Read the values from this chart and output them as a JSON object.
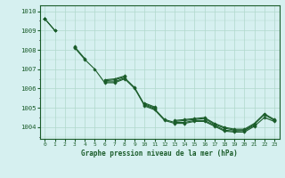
{
  "title": "Graphe pression niveau de la mer (hPa)",
  "bg_color": "#d6f0f0",
  "grid_color": "#b0d8cc",
  "line_color": "#1a5c2a",
  "marker_color": "#1a5c2a",
  "xlim": [
    -0.5,
    23.5
  ],
  "ylim": [
    1003.4,
    1010.3
  ],
  "yticks": [
    1004,
    1005,
    1006,
    1007,
    1008,
    1009,
    1010
  ],
  "xticks": [
    0,
    1,
    2,
    3,
    4,
    5,
    6,
    7,
    8,
    9,
    10,
    11,
    12,
    13,
    14,
    15,
    16,
    17,
    18,
    19,
    20,
    21,
    22,
    23
  ],
  "series": [
    [
      1009.6,
      1009.0,
      null,
      1008.1,
      1007.5,
      1007.0,
      1006.3,
      1006.3,
      1006.5,
      1006.0,
      1005.1,
      1004.9,
      1004.35,
      1004.2,
      1004.2,
      1004.3,
      1004.3,
      1004.05,
      1003.8,
      1003.75,
      1003.75,
      1004.05,
      1004.5,
      1004.3
    ],
    [
      1009.6,
      1009.0,
      null,
      1008.15,
      1007.55,
      null,
      1006.35,
      1006.35,
      1006.55,
      1006.05,
      1005.15,
      1004.95,
      1004.4,
      1004.25,
      1004.25,
      1004.35,
      1004.35,
      1004.1,
      1003.85,
      1003.8,
      1003.82,
      1004.1,
      null,
      1004.35
    ],
    [
      1009.6,
      null,
      null,
      1008.15,
      null,
      null,
      1006.4,
      1006.45,
      1006.6,
      null,
      1005.2,
      1005.0,
      null,
      1004.3,
      1004.35,
      1004.4,
      1004.45,
      1004.15,
      1003.95,
      1003.85,
      1003.85,
      1004.15,
      1004.65,
      1004.35
    ],
    [
      1009.6,
      null,
      null,
      1008.2,
      null,
      null,
      1006.45,
      1006.5,
      1006.65,
      null,
      1005.25,
      1005.05,
      null,
      1004.35,
      1004.4,
      1004.45,
      1004.5,
      1004.2,
      1004.0,
      1003.9,
      1003.9,
      1004.2,
      1004.7,
      1004.4
    ]
  ]
}
